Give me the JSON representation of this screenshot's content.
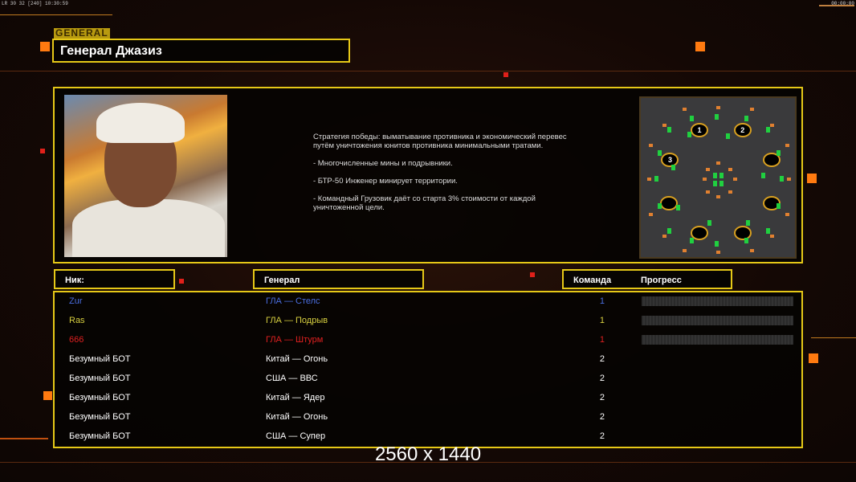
{
  "status_bar": {
    "left": "LR 30 32 [240] 10:30:59",
    "right": "00:00:00"
  },
  "general_tag": "GENERAL",
  "general_name": "Генерал Джазиз",
  "description": [
    "Стратегия победы: выматывание противника и экономический перевес путём уничтожения юнитов противника минимальными тратами.",
    "- Многочисленные мины и подрывники.",
    "- БТР-50 Инженер минирует территории.",
    "- Командный Грузовик даёт со старта 3% стоимости от каждой уничтоженной цели."
  ],
  "map": {
    "spawns": [
      "1",
      "2",
      "3",
      "",
      "",
      "",
      "",
      ""
    ]
  },
  "table": {
    "headers": {
      "nick": "Ник:",
      "general": "Генерал",
      "team": "Команда",
      "progress": "Прогресс"
    },
    "rows": [
      {
        "nick": "Zur",
        "general": "ГЛА — Стелс",
        "team": "1",
        "color": "#4a6ee0",
        "progress": true
      },
      {
        "nick": "Ras",
        "general": "ГЛА — Подрыв",
        "team": "1",
        "color": "#d8d040",
        "progress": true
      },
      {
        "nick": "666",
        "general": "ГЛА — Штурм",
        "team": "1",
        "color": "#e02020",
        "progress": true
      },
      {
        "nick": "Безумный БОТ",
        "general": "Китай — Огонь",
        "team": "2",
        "color": "#ffffff",
        "progress": false
      },
      {
        "nick": "Безумный БОТ",
        "general": "США — ВВС",
        "team": "2",
        "color": "#ffffff",
        "progress": false
      },
      {
        "nick": "Безумный БОТ",
        "general": "Китай — Ядер",
        "team": "2",
        "color": "#ffffff",
        "progress": false
      },
      {
        "nick": "Безумный БОТ",
        "general": "Китай — Огонь",
        "team": "2",
        "color": "#ffffff",
        "progress": false
      },
      {
        "nick": "Безумный БОТ",
        "general": "США — Супер",
        "team": "2",
        "color": "#ffffff",
        "progress": false
      }
    ]
  },
  "resolution_label": "2560 x 1440",
  "colors": {
    "accent": "#e6c817",
    "orange": "#ff7a10"
  }
}
